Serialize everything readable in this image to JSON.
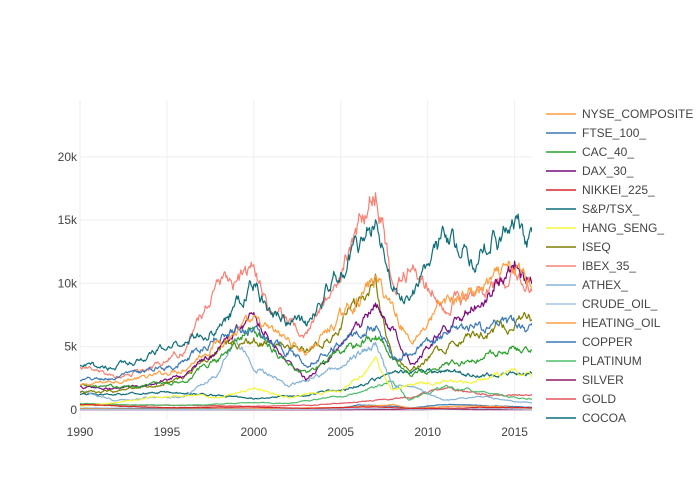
{
  "chart_data": {
    "type": "line",
    "title": "",
    "xlabel": "",
    "ylabel": "",
    "xlim": [
      1990,
      2016
    ],
    "ylim": [
      -800,
      24500
    ],
    "grid": true,
    "legend_position": "right",
    "x_ticks": [
      {
        "value": 1990,
        "label": "1990"
      },
      {
        "value": 1995,
        "label": "1995"
      },
      {
        "value": 2000,
        "label": "2000"
      },
      {
        "value": 2005,
        "label": "2005"
      },
      {
        "value": 2010,
        "label": "2010"
      },
      {
        "value": 2015,
        "label": "2015"
      }
    ],
    "y_ticks": [
      {
        "value": 0,
        "label": "0"
      },
      {
        "value": 5000,
        "label": "5k"
      },
      {
        "value": 10000,
        "label": "10k"
      },
      {
        "value": 15000,
        "label": "15k"
      },
      {
        "value": 20000,
        "label": "20k"
      }
    ],
    "series": [
      {
        "name": "NYSE_COMPOSITE",
        "color": "#ff9f40",
        "x": [
          1990,
          1992,
          1994,
          1996,
          1998,
          2000,
          2002,
          2003,
          2005,
          2007,
          2008,
          2009,
          2011,
          2013,
          2015,
          2016
        ],
        "values": [
          1900,
          2300,
          2600,
          3300,
          5500,
          6800,
          5500,
          4500,
          7300,
          10300,
          8200,
          5400,
          8500,
          9500,
          11000,
          10300
        ]
      },
      {
        "name": "FTSE_100_",
        "color": "#3a78b5",
        "x": [
          1990,
          1992,
          1994,
          1996,
          1998,
          1999,
          2000,
          2002,
          2003,
          2005,
          2007,
          2008,
          2009,
          2011,
          2013,
          2015,
          2016
        ],
        "values": [
          2300,
          2500,
          3100,
          3800,
          5800,
          6500,
          6400,
          4700,
          3700,
          5400,
          6700,
          4300,
          4700,
          5900,
          6500,
          6700,
          6200
        ]
      },
      {
        "name": "CAC_40_",
        "color": "#2ca02c",
        "x": [
          1990,
          1992,
          1994,
          1996,
          1998,
          2000,
          2002,
          2003,
          2005,
          2007,
          2008,
          2009,
          2011,
          2013,
          2015,
          2016
        ],
        "values": [
          1900,
          1800,
          2000,
          2300,
          4200,
          6600,
          3600,
          2800,
          4500,
          6000,
          4100,
          2800,
          3600,
          4000,
          5000,
          4600
        ]
      },
      {
        "name": "DAX_30_",
        "color": "#7b0a7f",
        "x": [
          1990,
          1992,
          1994,
          1996,
          1998,
          2000,
          2002,
          2003,
          2005,
          2007,
          2008,
          2009,
          2011,
          2013,
          2015,
          2016
        ],
        "values": [
          1800,
          1600,
          2100,
          2700,
          5000,
          7500,
          3800,
          2400,
          4900,
          8000,
          6200,
          3800,
          6500,
          8500,
          11800,
          10500
        ]
      },
      {
        "name": "NIKKEI_225_",
        "color": "#d62728",
        "x": [
          1990,
          1995,
          2000,
          2003,
          2007,
          2009,
          2012,
          2013,
          2016
        ],
        "values": [
          420,
          180,
          220,
          120,
          250,
          120,
          130,
          200,
          170
        ]
      },
      {
        "name": "S&P/TSX_",
        "color": "#0f6e78",
        "x": [
          1990,
          1992,
          1994,
          1996,
          1998,
          2000,
          2001,
          2003,
          2005,
          2007,
          2008,
          2009,
          2011,
          2013,
          2015,
          2016
        ],
        "values": [
          3400,
          3400,
          4300,
          5500,
          6500,
          10000,
          7500,
          6800,
          11000,
          14600,
          9500,
          9000,
          13500,
          12500,
          14500,
          13000
        ]
      },
      {
        "name": "HANG_SENG_",
        "color": "#f5f53a",
        "x": [
          1990,
          1992,
          1994,
          1996,
          1998,
          2000,
          2002,
          2003,
          2005,
          2007,
          2008,
          2009,
          2011,
          2013,
          2015,
          2016
        ],
        "values": [
          300,
          550,
          900,
          1200,
          1000,
          1700,
          1000,
          1300,
          1500,
          3800,
          1500,
          2000,
          2200,
          2300,
          3100,
          2600
        ]
      },
      {
        "name": "ISEQ",
        "color": "#7f7f00",
        "x": [
          1990,
          1992,
          1994,
          1996,
          1998,
          2000,
          2002,
          2003,
          2005,
          2007,
          2008,
          2009,
          2011,
          2013,
          2015,
          2016
        ],
        "values": [
          1400,
          1400,
          1800,
          2500,
          5000,
          5500,
          4800,
          4500,
          7000,
          10000,
          4200,
          3200,
          5000,
          6000,
          7000,
          7000
        ]
      },
      {
        "name": "IBEX_35_",
        "color": "#f98073",
        "x": [
          1990,
          1992,
          1994,
          1996,
          1998,
          1999,
          2000,
          2001,
          2003,
          2005,
          2007,
          2008,
          2009,
          2010,
          2011,
          2013,
          2015,
          2016
        ],
        "values": [
          3500,
          2500,
          3200,
          4800,
          10500,
          10000,
          11200,
          8000,
          6000,
          10500,
          18000,
          9700,
          11500,
          10000,
          8500,
          9000,
          10500,
          9500
        ]
      },
      {
        "name": "ATHEX_",
        "color": "#85b3d6",
        "x": [
          1990,
          1992,
          1994,
          1996,
          1998,
          1999,
          2000,
          2002,
          2003,
          2005,
          2007,
          2008,
          2009,
          2011,
          2013,
          2015,
          2016
        ],
        "values": [
          1500,
          700,
          1000,
          1000,
          3000,
          5800,
          3400,
          1900,
          2200,
          3500,
          5200,
          1800,
          2000,
          700,
          1100,
          650,
          600
        ]
      },
      {
        "name": "CRUDE_OIL_",
        "color": "#a8c4de",
        "x": [
          1990,
          1995,
          2000,
          2004,
          2008,
          2009,
          2012,
          2014,
          2016
        ],
        "values": [
          25,
          18,
          30,
          45,
          140,
          40,
          95,
          100,
          30
        ]
      },
      {
        "name": "HEATING_OIL",
        "color": "#ff9f40",
        "x": [
          1990,
          1995,
          2000,
          2005,
          2008,
          2009,
          2012,
          2014,
          2016
        ],
        "values": [
          80,
          50,
          90,
          180,
          400,
          130,
          300,
          290,
          100
        ]
      },
      {
        "name": "COPPER",
        "color": "#3a78b5",
        "x": [
          1990,
          1995,
          2000,
          2005,
          2006,
          2008,
          2009,
          2011,
          2014,
          2016
        ],
        "values": [
          120,
          130,
          85,
          150,
          400,
          300,
          140,
          450,
          300,
          200
        ]
      },
      {
        "name": "PLATINUM",
        "color": "#4fbd6a",
        "x": [
          1990,
          1993,
          1997,
          2000,
          2002,
          2006,
          2008,
          2008.9,
          2011,
          2013,
          2015,
          2016
        ],
        "values": [
          500,
          380,
          400,
          600,
          500,
          1300,
          2200,
          800,
          1850,
          1450,
          1000,
          900
        ]
      },
      {
        "name": "SILVER",
        "color": "#8e1a66",
        "x": [
          1990,
          1995,
          2000,
          2005,
          2008,
          2009,
          2011,
          2013,
          2016
        ],
        "values": [
          5,
          5,
          5,
          8,
          18,
          12,
          45,
          20,
          15
        ]
      },
      {
        "name": "GOLD",
        "color": "#e3565f",
        "x": [
          1990,
          1995,
          2000,
          2003,
          2006,
          2008,
          2009,
          2011,
          2013,
          2015,
          2016
        ],
        "values": [
          380,
          380,
          280,
          370,
          600,
          900,
          1000,
          1800,
          1250,
          1100,
          1150
        ]
      },
      {
        "name": "COCOA",
        "color": "#0f6e78",
        "x": [
          1990,
          1995,
          2000,
          2005,
          2008,
          2010,
          2013,
          2016
        ],
        "values": [
          1200,
          1400,
          900,
          1500,
          2800,
          3100,
          2800,
          3000
        ]
      }
    ]
  }
}
